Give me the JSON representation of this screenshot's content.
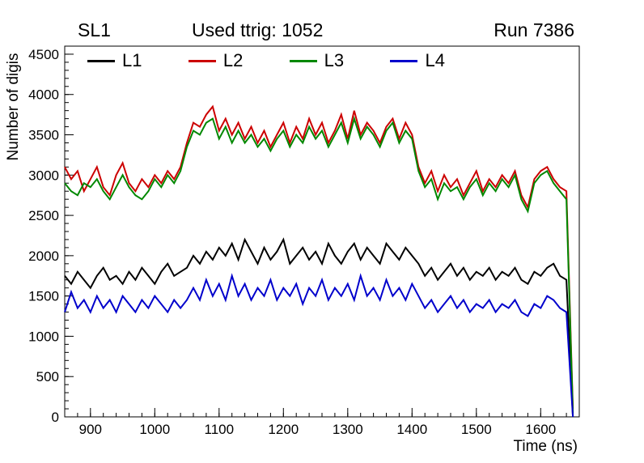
{
  "header": {
    "left": "SL1",
    "center": "Used ttrig: 1052",
    "right": "Run 7386"
  },
  "chart_data": {
    "type": "line",
    "title": "Used ttrig: 1052",
    "xlabel": "Time (ns)",
    "ylabel": "Number of digis",
    "xlim": [
      860,
      1660
    ],
    "ylim": [
      0,
      4600
    ],
    "xticks": [
      900,
      1000,
      1100,
      1200,
      1300,
      1400,
      1500,
      1600
    ],
    "yticks": [
      0,
      500,
      1000,
      1500,
      2000,
      2500,
      3000,
      3500,
      4000,
      4500
    ],
    "x_minor_step": 20,
    "y_minor_step": 100,
    "grid": false,
    "legend_position": "top-inside-horizontal",
    "x": [
      860,
      870,
      880,
      890,
      900,
      910,
      920,
      930,
      940,
      950,
      960,
      970,
      980,
      990,
      1000,
      1010,
      1020,
      1030,
      1040,
      1050,
      1060,
      1070,
      1080,
      1090,
      1100,
      1110,
      1120,
      1130,
      1140,
      1150,
      1160,
      1170,
      1180,
      1190,
      1200,
      1210,
      1220,
      1230,
      1240,
      1250,
      1260,
      1270,
      1280,
      1290,
      1300,
      1310,
      1320,
      1330,
      1340,
      1350,
      1360,
      1370,
      1380,
      1390,
      1400,
      1410,
      1420,
      1430,
      1440,
      1450,
      1460,
      1470,
      1480,
      1490,
      1500,
      1510,
      1520,
      1530,
      1540,
      1550,
      1560,
      1570,
      1580,
      1590,
      1600,
      1610,
      1620,
      1630,
      1640,
      1650
    ],
    "series": [
      {
        "name": "L1",
        "color": "#000000",
        "values": [
          1750,
          1650,
          1800,
          1700,
          1600,
          1750,
          1850,
          1700,
          1750,
          1650,
          1800,
          1700,
          1850,
          1750,
          1650,
          1800,
          1900,
          1750,
          1800,
          1850,
          2000,
          1900,
          2050,
          1950,
          2100,
          2000,
          2150,
          1950,
          2200,
          2050,
          1900,
          2100,
          1950,
          2050,
          2200,
          1900,
          2000,
          2100,
          1950,
          2050,
          1900,
          2150,
          2000,
          1900,
          2050,
          2150,
          1950,
          2100,
          2000,
          1900,
          2150,
          2050,
          1950,
          2100,
          2000,
          1900,
          1750,
          1850,
          1700,
          1800,
          1900,
          1750,
          1850,
          1700,
          1800,
          1750,
          1850,
          1700,
          1800,
          1750,
          1850,
          1700,
          1650,
          1800,
          1750,
          1850,
          1900,
          1750,
          1700,
          0
        ]
      },
      {
        "name": "L2",
        "color": "#cc0000",
        "values": [
          3100,
          2950,
          3050,
          2800,
          2950,
          3100,
          2850,
          2750,
          3000,
          3150,
          2900,
          2800,
          2950,
          2850,
          3000,
          2900,
          3050,
          2950,
          3100,
          3400,
          3650,
          3600,
          3750,
          3850,
          3550,
          3700,
          3500,
          3650,
          3450,
          3600,
          3400,
          3550,
          3350,
          3500,
          3650,
          3400,
          3600,
          3450,
          3700,
          3500,
          3650,
          3400,
          3550,
          3750,
          3450,
          3800,
          3500,
          3650,
          3550,
          3400,
          3600,
          3700,
          3450,
          3650,
          3500,
          3100,
          2900,
          3050,
          2800,
          3000,
          2850,
          2950,
          2750,
          2900,
          3050,
          2800,
          2950,
          2850,
          3000,
          2900,
          3050,
          2750,
          2600,
          2950,
          3050,
          3100,
          2950,
          2850,
          2800,
          100
        ]
      },
      {
        "name": "L3",
        "color": "#008800",
        "values": [
          2900,
          2800,
          2750,
          2900,
          2850,
          2950,
          2800,
          2700,
          2850,
          3000,
          2850,
          2750,
          2700,
          2800,
          2950,
          2850,
          3000,
          2900,
          3050,
          3350,
          3550,
          3500,
          3650,
          3700,
          3450,
          3600,
          3400,
          3550,
          3400,
          3500,
          3350,
          3450,
          3300,
          3450,
          3550,
          3350,
          3500,
          3400,
          3600,
          3450,
          3550,
          3350,
          3500,
          3650,
          3400,
          3700,
          3450,
          3600,
          3500,
          3350,
          3550,
          3650,
          3400,
          3550,
          3450,
          3050,
          2850,
          2950,
          2700,
          2900,
          2800,
          2850,
          2700,
          2850,
          2950,
          2750,
          2900,
          2800,
          2950,
          2850,
          3000,
          2700,
          2550,
          2900,
          3000,
          3050,
          2900,
          2800,
          2700,
          50
        ]
      },
      {
        "name": "L4",
        "color": "#0000cc",
        "values": [
          1300,
          1550,
          1350,
          1450,
          1300,
          1500,
          1350,
          1450,
          1300,
          1500,
          1400,
          1300,
          1450,
          1350,
          1500,
          1400,
          1300,
          1450,
          1350,
          1450,
          1600,
          1450,
          1700,
          1500,
          1650,
          1450,
          1750,
          1500,
          1650,
          1450,
          1600,
          1500,
          1700,
          1450,
          1600,
          1500,
          1650,
          1400,
          1600,
          1500,
          1700,
          1450,
          1600,
          1500,
          1650,
          1450,
          1750,
          1500,
          1600,
          1450,
          1700,
          1500,
          1600,
          1450,
          1650,
          1500,
          1350,
          1450,
          1300,
          1400,
          1500,
          1350,
          1450,
          1300,
          1400,
          1350,
          1450,
          1300,
          1400,
          1350,
          1450,
          1300,
          1250,
          1400,
          1350,
          1500,
          1450,
          1350,
          1300,
          0
        ]
      }
    ]
  }
}
